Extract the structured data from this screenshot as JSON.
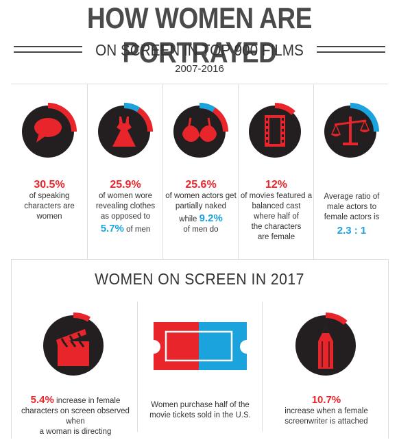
{
  "header": {
    "title": "HOW WOMEN ARE PORTRAYED",
    "subtitle": "ON SCREEN IN TOP 900 FILMS",
    "years": "2007-2016"
  },
  "stats": [
    {
      "value": "30.5%",
      "lines": [
        "of speaking",
        "characters are",
        "women"
      ],
      "icon": "speech-bubble-icon"
    },
    {
      "value": "25.9%",
      "lines": [
        "of women wore",
        "revealing clothes",
        "as opposed to"
      ],
      "extra_value": "5.7%",
      "extra_text": "of men",
      "icon": "dress-icon"
    },
    {
      "value": "25.6%",
      "lines": [
        "of women actors get",
        "partially naked"
      ],
      "while_text": "while",
      "extra_value": "9.2%",
      "extra_text": "of men do",
      "icon": "bra-icon"
    },
    {
      "value": "12%",
      "lines": [
        "of movies featured a",
        "balanced cast",
        "where half of",
        "the characters",
        "are female"
      ],
      "icon": "film-strip-icon"
    },
    {
      "lines": [
        "Average ratio of",
        "male actors to",
        "female actors is"
      ],
      "ratio": "2.3 : 1",
      "icon": "scale-icon"
    }
  ],
  "section2": {
    "title": "WOMEN ON SCREEN IN 2017",
    "items": [
      {
        "value": "5.4%",
        "line1": "increase in female",
        "line2": "characters on screen observed when",
        "line3": "a woman is directing",
        "icon": "clapperboard-icon"
      },
      {
        "line1": "Women purchase half of the",
        "line2": "movie tickets sold in the U.S.",
        "icon": "ticket-icon"
      },
      {
        "value": "10.7%",
        "line1": "increase when a female",
        "line2": "screenwriter is attached",
        "icon": "pencil-icon"
      }
    ]
  },
  "colors": {
    "red": "#e8252a",
    "blue": "#1aa3dd",
    "dark": "#231f20"
  }
}
